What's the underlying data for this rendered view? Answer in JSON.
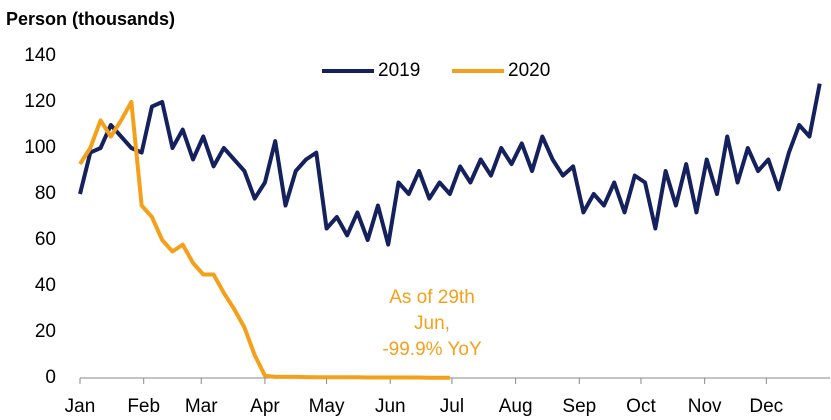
{
  "chart_data": {
    "type": "line",
    "title": "Person (thousands)",
    "x": [
      1,
      6,
      11,
      16,
      21,
      26,
      31,
      36,
      41,
      46,
      51,
      56,
      61,
      66,
      71,
      76,
      81,
      86,
      91,
      96,
      101,
      106,
      111,
      116,
      121,
      126,
      131,
      136,
      141,
      146,
      151,
      156,
      161,
      166,
      171,
      176,
      181,
      186,
      191,
      196,
      201,
      206,
      211,
      216,
      221,
      226,
      231,
      236,
      241,
      246,
      251,
      256,
      261,
      266,
      271,
      276,
      281,
      286,
      291,
      296,
      301,
      306,
      311,
      316,
      321,
      326,
      331,
      336,
      341,
      346,
      351,
      356,
      361
    ],
    "series": [
      {
        "name": "2019",
        "color": "#14215c",
        "values": [
          80,
          98,
          100,
          110,
          105,
          100,
          98,
          118,
          120,
          100,
          108,
          95,
          105,
          92,
          100,
          95,
          90,
          78,
          85,
          103,
          75,
          90,
          95,
          98,
          65,
          70,
          62,
          72,
          60,
          75,
          58,
          85,
          80,
          90,
          78,
          85,
          80,
          92,
          85,
          95,
          88,
          100,
          93,
          102,
          90,
          105,
          95,
          88,
          92,
          72,
          80,
          75,
          85,
          72,
          88,
          85,
          65,
          90,
          75,
          93,
          72,
          95,
          80,
          105,
          85,
          100,
          90,
          95,
          82,
          98,
          110,
          105,
          128
        ]
      },
      {
        "name": "2020",
        "color": "#f5a01a",
        "values": [
          93,
          100,
          112,
          105,
          112,
          120,
          75,
          70,
          60,
          55,
          58,
          50,
          45,
          45,
          37,
          30,
          22,
          10,
          1,
          0.5,
          0.5,
          0.5,
          0.4,
          0.3,
          0.3,
          0.3,
          0.3,
          0.3,
          0.2,
          0.2,
          0.2,
          0.2,
          0.2,
          0.2,
          0.1,
          0.1,
          0.1,
          null,
          null,
          null,
          null,
          null,
          null,
          null,
          null,
          null,
          null,
          null,
          null,
          null,
          null,
          null,
          null,
          null,
          null,
          null,
          null,
          null,
          null,
          null,
          null,
          null,
          null,
          null,
          null,
          null,
          null,
          null,
          null,
          null,
          null,
          null,
          null
        ]
      }
    ],
    "xlim": [
      1,
      366
    ],
    "xticks": [
      {
        "value": 1,
        "label": "Jan"
      },
      {
        "value": 32,
        "label": "Feb"
      },
      {
        "value": 60,
        "label": "Mar"
      },
      {
        "value": 91,
        "label": "Apr"
      },
      {
        "value": 121,
        "label": "May"
      },
      {
        "value": 152,
        "label": "Jun"
      },
      {
        "value": 182,
        "label": "Jul"
      },
      {
        "value": 213,
        "label": "Aug"
      },
      {
        "value": 244,
        "label": "Sep"
      },
      {
        "value": 274,
        "label": "Oct"
      },
      {
        "value": 305,
        "label": "Nov"
      },
      {
        "value": 335,
        "label": "Dec"
      }
    ],
    "ylim": [
      0,
      140
    ],
    "yticks": [
      0,
      20,
      40,
      60,
      80,
      100,
      120,
      140
    ],
    "grid": false,
    "legend": "top",
    "annotation": [
      "As of 29th",
      "Jun,",
      "-99.9% YoY"
    ]
  }
}
